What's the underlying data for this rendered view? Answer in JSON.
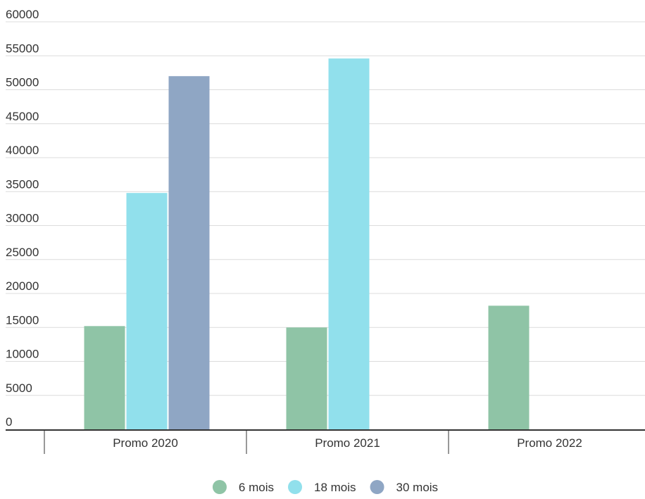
{
  "chart_data": {
    "type": "bar",
    "title": "",
    "xlabel": "",
    "ylabel": "",
    "categories": [
      "Promo 2020",
      "Promo 2021",
      "Promo 2022"
    ],
    "ylim": [
      0,
      60000
    ],
    "yticks": [
      0,
      5000,
      10000,
      15000,
      20000,
      25000,
      30000,
      35000,
      40000,
      45000,
      50000,
      55000,
      60000
    ],
    "grid": true,
    "legend_position": "bottom",
    "series": [
      {
        "name": "6 mois",
        "color": "#8fc4a6",
        "values": [
          15200,
          15000,
          18200
        ]
      },
      {
        "name": "18 mois",
        "color": "#91e0ec",
        "values": [
          34800,
          54600,
          null
        ]
      },
      {
        "name": "30 mois",
        "color": "#8fa6c4",
        "values": [
          52000,
          null,
          null
        ]
      }
    ]
  }
}
